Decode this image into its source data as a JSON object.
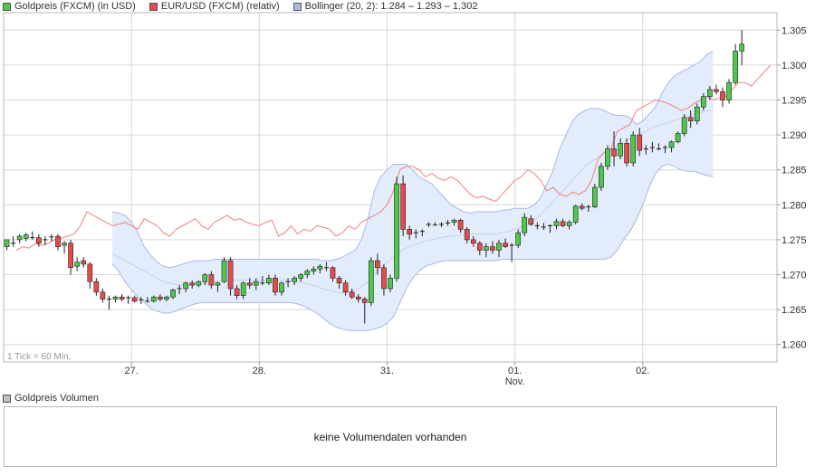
{
  "legend": {
    "items": [
      {
        "swatch_color": "#4cc84c",
        "text": "Goldpreis (FXCM) (in USD)"
      },
      {
        "swatch_color": "#e84a4a",
        "text": "EUR/USD (FXCM) (relativ)"
      },
      {
        "swatch_color": "#aab8e8",
        "text": "Bollinger (20, 2): 1.284 – 1.293 – 1.302"
      }
    ]
  },
  "tick_note": "1 Tick = 60 Min.",
  "volume": {
    "legend_swatch_color": "#c0c0c0",
    "legend_text": "Goldpreis Volumen",
    "message": "keine Volumendaten vorhanden"
  },
  "colors": {
    "up": "#4cc84c",
    "down": "#e84a4a",
    "eurusd": "#f08080",
    "bollinger_fill": "#e3ecfa",
    "bollinger_line": "#a9b8e6",
    "bollinger_mid": "#c6d0ee",
    "grid": "#d6d6d6"
  },
  "chart_data": {
    "type": "candlestick",
    "title": "",
    "ylim": [
      1.2575,
      1.3075
    ],
    "y_ticks": [
      "1.260",
      "1.265",
      "1.270",
      "1.275",
      "1.280",
      "1.285",
      "1.290",
      "1.295",
      "1.300",
      "1.305"
    ],
    "x_ticks": [
      {
        "label": "27.",
        "sublabel": "",
        "t": 20
      },
      {
        "label": "28.",
        "sublabel": "",
        "t": 40
      },
      {
        "label": "31.",
        "sublabel": "",
        "t": 60
      },
      {
        "label": "01.",
        "sublabel": "Nov.",
        "t": 80
      },
      {
        "label": "02.",
        "sublabel": "",
        "t": 100
      }
    ],
    "t_range": [
      0,
      121
    ],
    "candles": [
      [
        1.274,
        1.275,
        1.2735,
        1.275
      ],
      [
        1.2745,
        1.2755,
        1.274,
        1.2745
      ],
      [
        1.275,
        1.2758,
        1.2745,
        1.2755
      ],
      [
        1.2752,
        1.276,
        1.2748,
        1.2757
      ],
      [
        1.2755,
        1.2762,
        1.275,
        1.2753
      ],
      [
        1.2753,
        1.2758,
        1.274,
        1.2745
      ],
      [
        1.2748,
        1.2755,
        1.2742,
        1.275
      ],
      [
        1.2752,
        1.2758,
        1.2748,
        1.2754
      ],
      [
        1.2755,
        1.2758,
        1.2735,
        1.274
      ],
      [
        1.2742,
        1.2748,
        1.273,
        1.2745
      ],
      [
        1.2745,
        1.275,
        1.27,
        1.271
      ],
      [
        1.2712,
        1.2725,
        1.2705,
        1.2718
      ],
      [
        1.272,
        1.2725,
        1.271,
        1.2715
      ],
      [
        1.2715,
        1.2718,
        1.268,
        1.269
      ],
      [
        1.269,
        1.2695,
        1.267,
        1.2675
      ],
      [
        1.2675,
        1.268,
        1.266,
        1.2665
      ],
      [
        1.2665,
        1.267,
        1.265,
        1.2665
      ],
      [
        1.2665,
        1.267,
        1.266,
        1.2668
      ],
      [
        1.2668,
        1.2672,
        1.2662,
        1.2665
      ],
      [
        1.2665,
        1.267,
        1.2658,
        1.2667
      ],
      [
        1.2667,
        1.267,
        1.266,
        1.2662
      ],
      [
        1.2662,
        1.2668,
        1.2658,
        1.2664
      ],
      [
        1.2664,
        1.2668,
        1.266,
        1.2662
      ],
      [
        1.2662,
        1.267,
        1.266,
        1.2668
      ],
      [
        1.2668,
        1.2672,
        1.2662,
        1.2665
      ],
      [
        1.2665,
        1.267,
        1.2662,
        1.2668
      ],
      [
        1.2668,
        1.268,
        1.2665,
        1.2678
      ],
      [
        1.2678,
        1.2685,
        1.2672,
        1.268
      ],
      [
        1.268,
        1.269,
        1.2675,
        1.2688
      ],
      [
        1.2688,
        1.2692,
        1.268,
        1.2685
      ],
      [
        1.2685,
        1.2692,
        1.2682,
        1.269
      ],
      [
        1.269,
        1.2702,
        1.2685,
        1.27
      ],
      [
        1.27,
        1.2705,
        1.268,
        1.2685
      ],
      [
        1.2685,
        1.269,
        1.2675,
        1.2688
      ],
      [
        1.269,
        1.2725,
        1.2688,
        1.272
      ],
      [
        1.272,
        1.2725,
        1.267,
        1.268
      ],
      [
        1.268,
        1.2685,
        1.2665,
        1.267
      ],
      [
        1.267,
        1.269,
        1.2665,
        1.2688
      ],
      [
        1.2688,
        1.2695,
        1.268,
        1.2685
      ],
      [
        1.2685,
        1.2695,
        1.2678,
        1.269
      ],
      [
        1.269,
        1.2698,
        1.2685,
        1.2688
      ],
      [
        1.2688,
        1.27,
        1.2685,
        1.2695
      ],
      [
        1.2695,
        1.27,
        1.267,
        1.2675
      ],
      [
        1.2675,
        1.269,
        1.267,
        1.2688
      ],
      [
        1.2688,
        1.2695,
        1.2682,
        1.269
      ],
      [
        1.269,
        1.2698,
        1.2685,
        1.2695
      ],
      [
        1.2695,
        1.2702,
        1.269,
        1.27
      ],
      [
        1.27,
        1.2708,
        1.2695,
        1.2705
      ],
      [
        1.2705,
        1.2712,
        1.27,
        1.2708
      ],
      [
        1.2708,
        1.2715,
        1.2702,
        1.2712
      ],
      [
        1.2712,
        1.2718,
        1.2705,
        1.271
      ],
      [
        1.271,
        1.2712,
        1.269,
        1.2695
      ],
      [
        1.2695,
        1.2698,
        1.268,
        1.2688
      ],
      [
        1.2688,
        1.2692,
        1.267,
        1.2675
      ],
      [
        1.2675,
        1.268,
        1.2665,
        1.2668
      ],
      [
        1.2668,
        1.2672,
        1.266,
        1.2665
      ],
      [
        1.2665,
        1.2668,
        1.263,
        1.266
      ],
      [
        1.266,
        1.2725,
        1.2655,
        1.272
      ],
      [
        1.272,
        1.273,
        1.27,
        1.271
      ],
      [
        1.271,
        1.2715,
        1.267,
        1.268
      ],
      [
        1.268,
        1.27,
        1.2675,
        1.2695
      ],
      [
        1.2695,
        1.284,
        1.269,
        1.283
      ],
      [
        1.283,
        1.2842,
        1.2755,
        1.2765
      ],
      [
        1.2765,
        1.277,
        1.275,
        1.2758
      ],
      [
        1.2758,
        1.2765,
        1.2752,
        1.276
      ],
      [
        1.276,
        1.2765,
        1.2755,
        1.2762
      ],
      [
        1.277,
        1.2775,
        1.2768,
        1.2772
      ],
      [
        1.2772,
        1.2775,
        1.277,
        1.2771
      ],
      [
        1.2771,
        1.2775,
        1.2768,
        1.2772
      ],
      [
        1.2772,
        1.2778,
        1.277,
        1.2774
      ],
      [
        1.2775,
        1.278,
        1.277,
        1.2778
      ],
      [
        1.2778,
        1.278,
        1.276,
        1.2765
      ],
      [
        1.2765,
        1.2768,
        1.2745,
        1.275
      ],
      [
        1.275,
        1.2755,
        1.274,
        1.2745
      ],
      [
        1.2745,
        1.2748,
        1.2728,
        1.2735
      ],
      [
        1.2735,
        1.2745,
        1.2725,
        1.274
      ],
      [
        1.274,
        1.2748,
        1.273,
        1.2735
      ],
      [
        1.2735,
        1.275,
        1.2725,
        1.2745
      ],
      [
        1.2745,
        1.2752,
        1.2738,
        1.274
      ],
      [
        1.274,
        1.2745,
        1.2718,
        1.2742
      ],
      [
        1.2742,
        1.2765,
        1.2738,
        1.276
      ],
      [
        1.276,
        1.2788,
        1.2755,
        1.2782
      ],
      [
        1.278,
        1.2785,
        1.277,
        1.2772
      ],
      [
        1.2772,
        1.2775,
        1.2765,
        1.277
      ],
      [
        1.277,
        1.2774,
        1.2764,
        1.2768
      ],
      [
        1.2768,
        1.2772,
        1.276,
        1.277
      ],
      [
        1.277,
        1.278,
        1.2765,
        1.2776
      ],
      [
        1.2776,
        1.278,
        1.2768,
        1.277
      ],
      [
        1.277,
        1.2778,
        1.2765,
        1.2775
      ],
      [
        1.2775,
        1.28,
        1.2772,
        1.2798
      ],
      [
        1.2798,
        1.2802,
        1.2792,
        1.2795
      ],
      [
        1.2795,
        1.28,
        1.279,
        1.2797
      ],
      [
        1.2797,
        1.283,
        1.2795,
        1.2825
      ],
      [
        1.2825,
        1.286,
        1.282,
        1.2855
      ],
      [
        1.2855,
        1.2885,
        1.285,
        1.288
      ],
      [
        1.288,
        1.2905,
        1.2855,
        1.287
      ],
      [
        1.287,
        1.2895,
        1.2865,
        1.2888
      ],
      [
        1.2888,
        1.2895,
        1.2855,
        1.286
      ],
      [
        1.286,
        1.2905,
        1.2855,
        1.29
      ],
      [
        1.29,
        1.291,
        1.287,
        1.2878
      ],
      [
        1.2878,
        1.2885,
        1.2872,
        1.288
      ],
      [
        1.288,
        1.289,
        1.2875,
        1.2882
      ],
      [
        1.2882,
        1.2888,
        1.2878,
        1.288
      ],
      [
        1.288,
        1.2885,
        1.2874,
        1.2882
      ],
      [
        1.2882,
        1.2892,
        1.2875,
        1.289
      ],
      [
        1.289,
        1.2905,
        1.2888,
        1.2902
      ],
      [
        1.2902,
        1.293,
        1.2898,
        1.2925
      ],
      [
        1.2925,
        1.2935,
        1.291,
        1.292
      ],
      [
        1.292,
        1.2945,
        1.2915,
        1.294
      ],
      [
        1.294,
        1.296,
        1.2935,
        1.2955
      ],
      [
        1.2955,
        1.297,
        1.295,
        1.2965
      ],
      [
        1.2965,
        1.2972,
        1.2958,
        1.2962
      ],
      [
        1.2962,
        1.2968,
        1.294,
        1.295
      ],
      [
        1.295,
        1.298,
        1.2945,
        1.2975
      ],
      [
        1.2975,
        1.303,
        1.2972,
        1.302
      ],
      [
        1.302,
        1.305,
        1.3,
        1.303
      ]
    ],
    "eurusd_relative": [
      1.2735,
      1.274,
      1.2738,
      1.2745,
      1.2742,
      1.2745,
      1.275,
      1.2752,
      1.2755,
      1.2758,
      1.277,
      1.279,
      1.2785,
      1.278,
      1.2775,
      1.277,
      1.2772,
      1.2775,
      1.277,
      1.2765,
      1.278,
      1.2775,
      1.277,
      1.276,
      1.2755,
      1.2765,
      1.277,
      1.2775,
      1.278,
      1.277,
      1.2765,
      1.2775,
      1.278,
      1.2785,
      1.2778,
      1.278,
      1.2775,
      1.2772,
      1.277,
      1.2775,
      1.2778,
      1.2755,
      1.276,
      1.277,
      1.2758,
      1.2765,
      1.2762,
      1.277,
      1.2768,
      1.2765,
      1.2755,
      1.276,
      1.277,
      1.2765,
      1.2775,
      1.278,
      1.2785,
      1.279,
      1.28,
      1.282,
      1.285,
      1.2855,
      1.2855,
      1.285,
      1.284,
      1.2845,
      1.2838,
      1.2835,
      1.284,
      1.2835,
      1.2825,
      1.2815,
      1.281,
      1.2812,
      1.2808,
      1.2805,
      1.2815,
      1.2825,
      1.2835,
      1.284,
      1.285,
      1.2845,
      1.2835,
      1.282,
      1.2825,
      1.2815,
      1.2812,
      1.2818,
      1.2815,
      1.282,
      1.2835,
      1.2865,
      1.2875,
      1.288,
      1.2905,
      1.291,
      1.2915,
      1.2935,
      1.294,
      1.2945,
      1.295,
      1.2948,
      1.2945,
      1.294,
      1.2935,
      1.2938,
      1.2945,
      1.295,
      1.2955,
      1.295,
      1.2953,
      1.2955,
      1.2965,
      1.2975,
      1.2975,
      1.297,
      1.298,
      1.299,
      1.3
    ],
    "bollinger": {
      "start": 17,
      "upper": [
        1.279,
        1.2788,
        1.2785,
        1.2775,
        1.276,
        1.274,
        1.2728,
        1.2718,
        1.2712,
        1.271,
        1.2712,
        1.2715,
        1.2718,
        1.272,
        1.272,
        1.272,
        1.2722,
        1.2722,
        1.2722,
        1.2722,
        1.2722,
        1.2722,
        1.2722,
        1.2722,
        1.2722,
        1.2722,
        1.2722,
        1.2722,
        1.2722,
        1.2722,
        1.2722,
        1.2722,
        1.2722,
        1.272,
        1.272,
        1.2722,
        1.2725,
        1.273,
        1.2735,
        1.275,
        1.278,
        1.282,
        1.284,
        1.285,
        1.2858,
        1.2858,
        1.2858,
        1.285,
        1.284,
        1.2835,
        1.283,
        1.282,
        1.281,
        1.28,
        1.2795,
        1.279,
        1.2788,
        1.279,
        1.279,
        1.279,
        1.279,
        1.2792,
        1.2793,
        1.2795,
        1.2795,
        1.2795,
        1.28,
        1.281,
        1.283,
        1.285,
        1.288,
        1.29,
        1.292,
        1.293,
        1.2935,
        1.2938,
        1.2938,
        1.2935,
        1.293,
        1.2928,
        1.2928,
        1.2925,
        1.2915,
        1.292,
        1.293,
        1.294,
        1.296,
        1.2975,
        1.2985,
        1.299,
        1.2995,
        1.3,
        1.3005,
        1.3015,
        1.302
      ],
      "lower": [
        1.2715,
        1.2705,
        1.269,
        1.2678,
        1.2668,
        1.266,
        1.2652,
        1.2648,
        1.2645,
        1.2645,
        1.2648,
        1.2652,
        1.2655,
        1.2658,
        1.266,
        1.266,
        1.266,
        1.266,
        1.266,
        1.266,
        1.266,
        1.266,
        1.266,
        1.266,
        1.266,
        1.266,
        1.266,
        1.266,
        1.266,
        1.2658,
        1.2655,
        1.265,
        1.2645,
        1.2638,
        1.263,
        1.2625,
        1.2622,
        1.262,
        1.262,
        1.262,
        1.262,
        1.2622,
        1.2625,
        1.263,
        1.264,
        1.266,
        1.268,
        1.2695,
        1.2705,
        1.2712,
        1.2715,
        1.2718,
        1.272,
        1.272,
        1.272,
        1.272,
        1.272,
        1.272,
        1.272,
        1.272,
        1.272,
        1.2722,
        1.2722,
        1.2722,
        1.2722,
        1.2722,
        1.2722,
        1.2722,
        1.2722,
        1.2722,
        1.2722,
        1.2722,
        1.2722,
        1.2722,
        1.2722,
        1.2722,
        1.2722,
        1.2722,
        1.2725,
        1.2735,
        1.275,
        1.2762,
        1.2778,
        1.28,
        1.2825,
        1.2845,
        1.2855,
        1.2858,
        1.2855,
        1.285,
        1.2848,
        1.2848,
        1.2845,
        1.2842,
        1.284
      ],
      "middle": [
        1.273,
        1.2725,
        1.272,
        1.2715,
        1.271,
        1.2705,
        1.27,
        1.2695,
        1.269,
        1.2688,
        1.2686,
        1.2685,
        1.2685,
        1.2686,
        1.2687,
        1.2688,
        1.269,
        1.2691,
        1.2692,
        1.2692,
        1.2692,
        1.2692,
        1.2692,
        1.2692,
        1.2692,
        1.2692,
        1.2692,
        1.2692,
        1.2692,
        1.269,
        1.2688,
        1.2686,
        1.2683,
        1.268,
        1.2677,
        1.2675,
        1.2674,
        1.2675,
        1.2678,
        1.2683,
        1.269,
        1.27,
        1.271,
        1.2718,
        1.2725,
        1.2732,
        1.2738,
        1.2742,
        1.2745,
        1.2748,
        1.275,
        1.2752,
        1.2754,
        1.2755,
        1.2756,
        1.2757,
        1.2758,
        1.2758,
        1.2758,
        1.2758,
        1.2758,
        1.276,
        1.2762,
        1.2765,
        1.2768,
        1.2772,
        1.2778,
        1.2785,
        1.2795,
        1.2805,
        1.2815,
        1.2825,
        1.2835,
        1.2845,
        1.2855,
        1.2862,
        1.2868,
        1.2875,
        1.288,
        1.2885,
        1.289,
        1.2895,
        1.2898,
        1.2903,
        1.2908,
        1.2912,
        1.2915,
        1.2918,
        1.2921,
        1.2924,
        1.2927,
        1.293,
        1.2932,
        1.2934,
        1.2935
      ]
    }
  }
}
